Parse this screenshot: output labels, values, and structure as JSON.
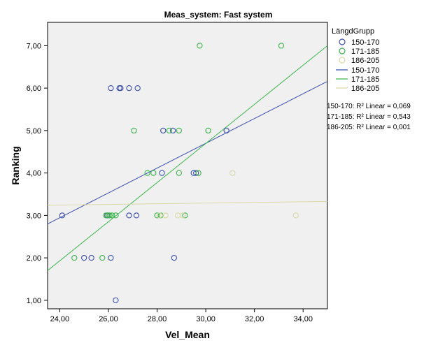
{
  "chart_data": {
    "type": "scatter",
    "title": "Meas_system: Fast system",
    "xlabel": "Vel_Mean",
    "ylabel": "Ranking",
    "xlim": [
      23.5,
      35.0
    ],
    "ylim": [
      0.8,
      7.55
    ],
    "x_ticks": [
      24,
      26,
      28,
      30,
      32,
      34
    ],
    "x_tick_labels": [
      "24,00",
      "26,00",
      "28,00",
      "30,00",
      "32,00",
      "34,00"
    ],
    "y_ticks": [
      1,
      2,
      3,
      4,
      5,
      6,
      7
    ],
    "y_tick_labels": [
      "1,00",
      "2,00",
      "3,00",
      "4,00",
      "5,00",
      "6,00",
      "7,00"
    ],
    "legend_title": "LängdGrupp",
    "series": [
      {
        "name": "150-170",
        "color": "#3c4fb0",
        "points": [
          [
            24.1,
            3
          ],
          [
            25.0,
            2
          ],
          [
            25.3,
            2
          ],
          [
            25.95,
            3
          ],
          [
            26.1,
            6
          ],
          [
            26.1,
            2
          ],
          [
            26.3,
            1
          ],
          [
            26.45,
            6
          ],
          [
            26.5,
            6
          ],
          [
            26.85,
            6
          ],
          [
            26.85,
            3
          ],
          [
            27.2,
            6
          ],
          [
            27.15,
            3
          ],
          [
            28.2,
            4
          ],
          [
            28.25,
            5
          ],
          [
            28.65,
            5
          ],
          [
            28.7,
            2
          ],
          [
            29.5,
            4
          ],
          [
            29.6,
            4
          ],
          [
            30.85,
            5
          ]
        ],
        "fit": [
          [
            23.5,
            2.8
          ],
          [
            35.0,
            6.16
          ]
        ],
        "fit_label": "150-170",
        "r2_label": "150-170: R² Linear = 0,069"
      },
      {
        "name": "171-185",
        "color": "#3ab54a",
        "points": [
          [
            24.6,
            2
          ],
          [
            25.75,
            2
          ],
          [
            25.9,
            3
          ],
          [
            26.0,
            3
          ],
          [
            26.05,
            3
          ],
          [
            26.15,
            3
          ],
          [
            26.3,
            3
          ],
          [
            27.05,
            5
          ],
          [
            27.6,
            4
          ],
          [
            27.85,
            4
          ],
          [
            28.0,
            3
          ],
          [
            28.15,
            3
          ],
          [
            28.5,
            5
          ],
          [
            28.9,
            5
          ],
          [
            28.9,
            4
          ],
          [
            29.15,
            3
          ],
          [
            29.7,
            4
          ],
          [
            29.75,
            7
          ],
          [
            30.1,
            5
          ],
          [
            33.1,
            7
          ]
        ],
        "fit": [
          [
            23.5,
            1.7
          ],
          [
            35.0,
            7.0
          ]
        ],
        "fit_label": "171-185",
        "r2_label": "171-185: R² Linear = 0,543"
      },
      {
        "name": "186-205",
        "color": "#d9d9a6",
        "points": [
          [
            28.1,
            3
          ],
          [
            28.35,
            3
          ],
          [
            28.85,
            3
          ],
          [
            29.05,
            3
          ],
          [
            31.1,
            4
          ],
          [
            33.7,
            3
          ]
        ],
        "fit": [
          [
            23.5,
            3.24
          ],
          [
            35.0,
            3.33
          ]
        ],
        "fit_label": "186-205",
        "r2_label": "186-205: R² Linear = 0,001"
      }
    ]
  }
}
